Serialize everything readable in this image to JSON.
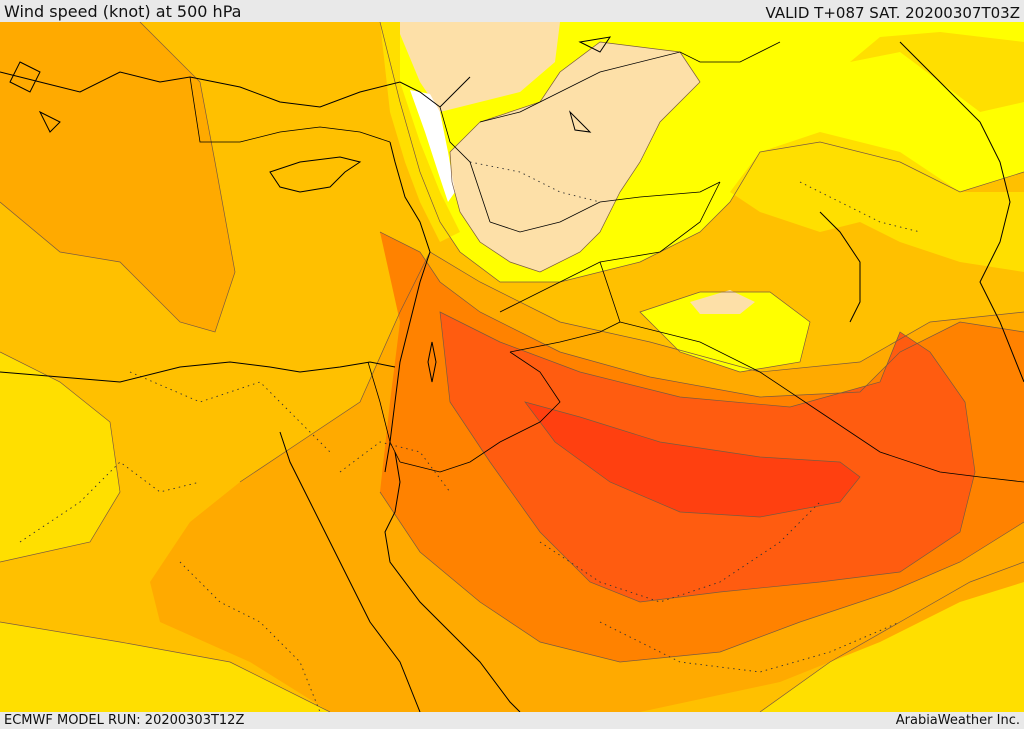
{
  "header": {
    "title": "Wind speed (knot) at 500 hPa",
    "valid_time": "VALID T+087 SAT. 20200307T03Z"
  },
  "footer": {
    "model_run": "ECMWF MODEL RUN: 20200303T12Z",
    "credit": "ArabiaWeather Inc."
  },
  "map": {
    "colors": {
      "white": "#ffffff",
      "beige": "#fde0a8",
      "yellow": "#ffff00",
      "gold": "#ffdf00",
      "light_orange": "#ffc000",
      "orange": "#ffaa00",
      "dark_orange": "#ff8200",
      "red_orange": "#ff5c10",
      "red": "#ff4010",
      "coast": "#000000",
      "contour": "#7a5a40"
    }
  }
}
